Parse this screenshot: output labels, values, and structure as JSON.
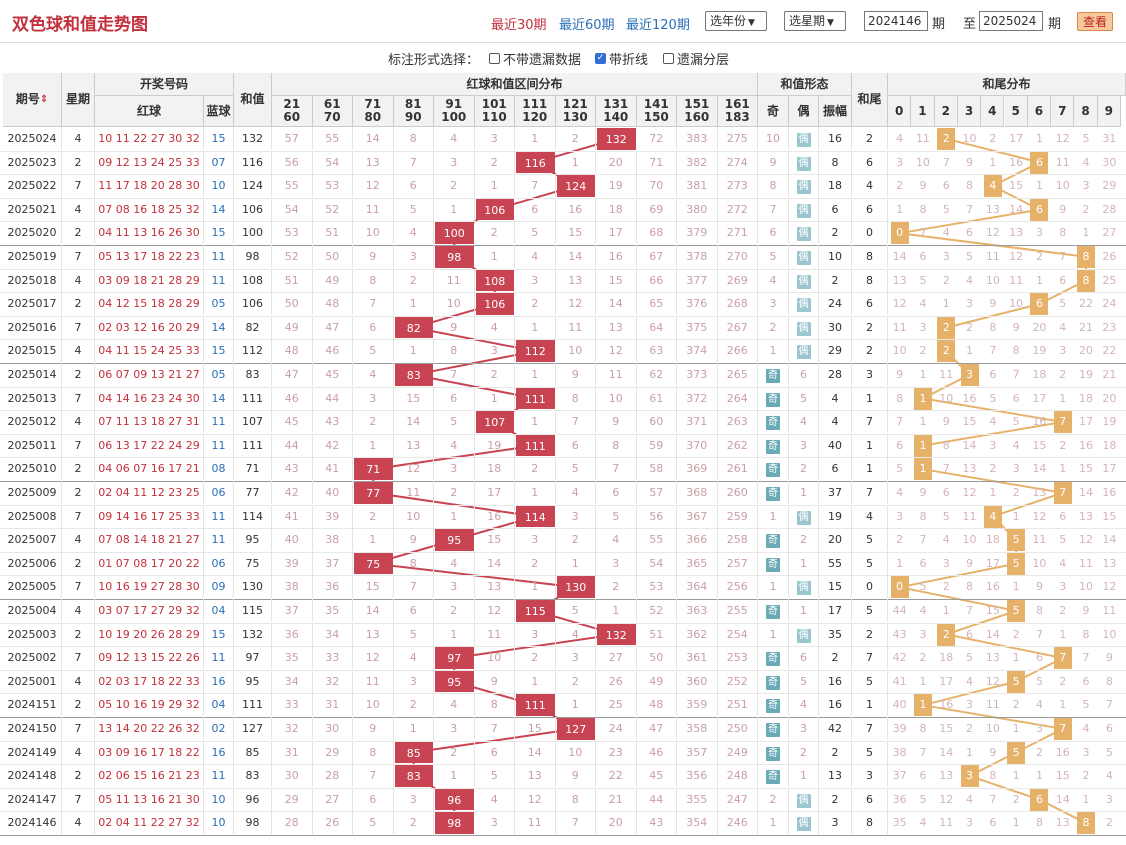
{
  "header": {
    "title": "双色球和值走势图",
    "periods": [
      "最近30期",
      "最近60期",
      "最近120期"
    ],
    "select_year": "选年份",
    "select_issue": "选星期",
    "from": "2024146",
    "to": "2025024",
    "qi": "期",
    "zhi": "至",
    "view": "查看"
  },
  "options": {
    "label": "标注形式选择：",
    "items": [
      {
        "label": "不带遗漏数据",
        "checked": false
      },
      {
        "label": "带折线",
        "checked": true
      },
      {
        "label": "遗漏分层",
        "checked": false
      }
    ]
  },
  "table": {
    "h_issue": "期号",
    "sort_icon": "sort-icon",
    "h_week": "星期",
    "h_draw": "开奖号码",
    "h_red": "红球",
    "h_blue": "蓝球",
    "h_sum": "和值",
    "h_dist": "红球和值区间分布",
    "h_form": "和值形态",
    "h_odd": "奇",
    "h_even": "偶",
    "h_amp": "振幅",
    "h_tail": "和尾",
    "h_tail_dist": "和尾分布",
    "tail_digits": [
      "0",
      "1",
      "2",
      "3",
      "4",
      "5",
      "6",
      "7",
      "8",
      "9"
    ],
    "ranges": [
      [
        "21",
        "60"
      ],
      [
        "61",
        "70"
      ],
      [
        "71",
        "80"
      ],
      [
        "81",
        "90"
      ],
      [
        "91",
        "100"
      ],
      [
        "101",
        "110"
      ],
      [
        "111",
        "120"
      ],
      [
        "121",
        "130"
      ],
      [
        "131",
        "140"
      ],
      [
        "141",
        "150"
      ],
      [
        "151",
        "160"
      ],
      [
        "161",
        "183"
      ]
    ]
  },
  "chart_data": {
    "type": "table",
    "title": "双色球和值走势图",
    "rows": [
      {
        "issue": "2025024",
        "week": "4",
        "red": "10 11 22 27 30 32",
        "blue": "15",
        "sum": 132,
        "ranges": [
          57,
          55,
          14,
          8,
          4,
          3,
          1,
          2,
          null,
          72,
          383,
          275
        ],
        "odd": "10",
        "even": "偶",
        "amp": 16,
        "tail": 2,
        "tails": [
          4,
          11,
          null,
          10,
          2,
          17,
          1,
          12,
          5,
          31
        ]
      },
      {
        "issue": "2025023",
        "week": "2",
        "red": "09 12 13 24 25 33",
        "blue": "07",
        "sum": 116,
        "ranges": [
          56,
          54,
          13,
          7,
          3,
          2,
          null,
          1,
          20,
          71,
          382,
          274
        ],
        "odd": "9",
        "even": "偶",
        "amp": 8,
        "tail": 6,
        "tails": [
          3,
          10,
          7,
          9,
          1,
          16,
          null,
          11,
          4,
          30
        ]
      },
      {
        "issue": "2025022",
        "week": "7",
        "red": "11 17 18 20 28 30",
        "blue": "10",
        "sum": 124,
        "ranges": [
          55,
          53,
          12,
          6,
          2,
          1,
          7,
          null,
          19,
          70,
          381,
          273
        ],
        "odd": "8",
        "even": "偶",
        "amp": 18,
        "tail": 4,
        "tails": [
          2,
          9,
          6,
          8,
          null,
          15,
          1,
          10,
          3,
          29
        ]
      },
      {
        "issue": "2025021",
        "week": "4",
        "red": "07 08 16 18 25 32",
        "blue": "14",
        "sum": 106,
        "ranges": [
          54,
          52,
          11,
          5,
          1,
          null,
          6,
          16,
          18,
          69,
          380,
          272
        ],
        "odd": "7",
        "even": "偶",
        "amp": 6,
        "tail": 6,
        "tails": [
          1,
          8,
          5,
          7,
          13,
          14,
          null,
          9,
          2,
          28
        ]
      },
      {
        "issue": "2025020",
        "week": "2",
        "red": "04 11 13 16 26 30",
        "blue": "15",
        "sum": 100,
        "ranges": [
          53,
          51,
          10,
          4,
          null,
          2,
          5,
          15,
          17,
          68,
          379,
          271
        ],
        "odd": "6",
        "even": "偶",
        "amp": 2,
        "tail": 0,
        "tails": [
          null,
          7,
          4,
          6,
          12,
          13,
          3,
          8,
          1,
          27
        ]
      },
      {
        "issue": "2025019",
        "week": "7",
        "red": "05 13 17 18 22 23",
        "blue": "11",
        "sum": 98,
        "ranges": [
          52,
          50,
          9,
          3,
          null,
          1,
          4,
          14,
          16,
          67,
          378,
          270
        ],
        "odd": "5",
        "even": "偶",
        "amp": 10,
        "tail": 8,
        "tails": [
          14,
          6,
          3,
          5,
          11,
          12,
          2,
          7,
          null,
          26
        ]
      },
      {
        "issue": "2025018",
        "week": "4",
        "red": "03 09 18 21 28 29",
        "blue": "11",
        "sum": 108,
        "ranges": [
          51,
          49,
          8,
          2,
          11,
          null,
          3,
          13,
          15,
          66,
          377,
          269
        ],
        "odd": "4",
        "even": "偶",
        "amp": 2,
        "tail": 8,
        "tails": [
          13,
          5,
          2,
          4,
          10,
          11,
          1,
          6,
          null,
          25
        ]
      },
      {
        "issue": "2025017",
        "week": "2",
        "red": "04 12 15 18 28 29",
        "blue": "05",
        "sum": 106,
        "ranges": [
          50,
          48,
          7,
          1,
          10,
          null,
          2,
          12,
          14,
          65,
          376,
          268
        ],
        "odd": "3",
        "even": "偶",
        "amp": 24,
        "tail": 6,
        "tails": [
          12,
          4,
          1,
          3,
          9,
          10,
          null,
          5,
          22,
          24
        ]
      },
      {
        "issue": "2025016",
        "week": "7",
        "red": "02 03 12 16 20 29",
        "blue": "14",
        "sum": 82,
        "ranges": [
          49,
          47,
          6,
          null,
          9,
          4,
          1,
          11,
          13,
          64,
          375,
          267
        ],
        "odd": "2",
        "even": "偶",
        "amp": 30,
        "tail": 2,
        "tails": [
          11,
          3,
          null,
          2,
          8,
          9,
          20,
          4,
          21,
          23
        ]
      },
      {
        "issue": "2025015",
        "week": "4",
        "red": "04 11 15 24 25 33",
        "blue": "15",
        "sum": 112,
        "ranges": [
          48,
          46,
          5,
          1,
          8,
          3,
          null,
          10,
          12,
          63,
          374,
          266
        ],
        "odd": "1",
        "even": "偶",
        "amp": 29,
        "tail": 2,
        "tails": [
          10,
          2,
          null,
          1,
          7,
          8,
          19,
          3,
          20,
          22
        ]
      },
      {
        "issue": "2025014",
        "week": "2",
        "red": "06 07 09 13 21 27",
        "blue": "05",
        "sum": 83,
        "ranges": [
          47,
          45,
          4,
          null,
          7,
          2,
          1,
          9,
          11,
          62,
          373,
          265
        ],
        "odd": "奇",
        "even": "6",
        "amp": 28,
        "tail": 3,
        "tails": [
          9,
          1,
          11,
          null,
          6,
          7,
          18,
          2,
          19,
          21
        ]
      },
      {
        "issue": "2025013",
        "week": "7",
        "red": "04 14 16 23 24 30",
        "blue": "14",
        "sum": 111,
        "ranges": [
          46,
          44,
          3,
          15,
          6,
          1,
          null,
          8,
          10,
          61,
          372,
          264
        ],
        "odd": "奇",
        "even": "5",
        "amp": 4,
        "tail": 1,
        "tails": [
          8,
          null,
          10,
          16,
          5,
          6,
          17,
          1,
          18,
          20
        ]
      },
      {
        "issue": "2025012",
        "week": "4",
        "red": "07 11 13 18 27 31",
        "blue": "11",
        "sum": 107,
        "ranges": [
          45,
          43,
          2,
          14,
          5,
          null,
          1,
          7,
          9,
          60,
          371,
          263
        ],
        "odd": "奇",
        "even": "4",
        "amp": 4,
        "tail": 7,
        "tails": [
          7,
          1,
          9,
          15,
          4,
          5,
          16,
          null,
          17,
          19
        ]
      },
      {
        "issue": "2025011",
        "week": "7",
        "red": "06 13 17 22 24 29",
        "blue": "11",
        "sum": 111,
        "ranges": [
          44,
          42,
          1,
          13,
          4,
          19,
          null,
          6,
          8,
          59,
          370,
          262
        ],
        "odd": "奇",
        "even": "3",
        "amp": 40,
        "tail": 1,
        "tails": [
          6,
          null,
          8,
          14,
          3,
          4,
          15,
          2,
          16,
          18
        ]
      },
      {
        "issue": "2025010",
        "week": "2",
        "red": "04 06 07 16 17 21",
        "blue": "08",
        "sum": 71,
        "ranges": [
          43,
          41,
          null,
          12,
          3,
          18,
          2,
          5,
          7,
          58,
          369,
          261
        ],
        "odd": "奇",
        "even": "2",
        "amp": 6,
        "tail": 1,
        "tails": [
          5,
          null,
          7,
          13,
          2,
          3,
          14,
          1,
          15,
          17
        ]
      },
      {
        "issue": "2025009",
        "week": "2",
        "red": "02 04 11 12 23 25",
        "blue": "06",
        "sum": 77,
        "ranges": [
          42,
          40,
          null,
          11,
          2,
          17,
          1,
          4,
          6,
          57,
          368,
          260
        ],
        "odd": "奇",
        "even": "1",
        "amp": 37,
        "tail": 7,
        "tails": [
          4,
          9,
          6,
          12,
          1,
          2,
          13,
          null,
          14,
          16
        ]
      },
      {
        "issue": "2025008",
        "week": "7",
        "red": "09 14 16 17 25 33",
        "blue": "11",
        "sum": 114,
        "ranges": [
          41,
          39,
          2,
          10,
          1,
          16,
          null,
          3,
          5,
          56,
          367,
          259
        ],
        "odd": "1",
        "even": "偶",
        "amp": 19,
        "tail": 4,
        "tails": [
          3,
          8,
          5,
          11,
          null,
          1,
          12,
          6,
          13,
          15
        ]
      },
      {
        "issue": "2025007",
        "week": "4",
        "red": "07 08 14 18 21 27",
        "blue": "11",
        "sum": 95,
        "ranges": [
          40,
          38,
          1,
          9,
          null,
          15,
          3,
          2,
          4,
          55,
          366,
          258
        ],
        "odd": "奇",
        "even": "2",
        "amp": 20,
        "tail": 5,
        "tails": [
          2,
          7,
          4,
          10,
          18,
          null,
          11,
          5,
          12,
          14
        ]
      },
      {
        "issue": "2025006",
        "week": "2",
        "red": "01 07 08 17 20 22",
        "blue": "06",
        "sum": 75,
        "ranges": [
          39,
          37,
          null,
          8,
          4,
          14,
          2,
          1,
          3,
          54,
          365,
          257
        ],
        "odd": "奇",
        "even": "1",
        "amp": 55,
        "tail": 5,
        "tails": [
          1,
          6,
          3,
          9,
          17,
          null,
          10,
          4,
          11,
          13
        ]
      },
      {
        "issue": "2025005",
        "week": "7",
        "red": "10 16 19 27 28 30",
        "blue": "09",
        "sum": 130,
        "ranges": [
          38,
          36,
          15,
          7,
          3,
          13,
          1,
          null,
          2,
          53,
          364,
          256
        ],
        "odd": "1",
        "even": "偶",
        "amp": 15,
        "tail": 0,
        "tails": [
          null,
          5,
          2,
          8,
          16,
          1,
          9,
          3,
          10,
          12
        ]
      },
      {
        "issue": "2025004",
        "week": "4",
        "red": "03 07 17 27 29 32",
        "blue": "04",
        "sum": 115,
        "ranges": [
          37,
          35,
          14,
          6,
          2,
          12,
          null,
          5,
          1,
          52,
          363,
          255
        ],
        "odd": "奇",
        "even": "1",
        "amp": 17,
        "tail": 5,
        "tails": [
          44,
          4,
          1,
          7,
          15,
          null,
          8,
          2,
          9,
          11
        ]
      },
      {
        "issue": "2025003",
        "week": "2",
        "red": "10 19 20 26 28 29",
        "blue": "15",
        "sum": 132,
        "ranges": [
          36,
          34,
          13,
          5,
          1,
          11,
          3,
          4,
          null,
          51,
          362,
          254
        ],
        "odd": "1",
        "even": "偶",
        "amp": 35,
        "tail": 2,
        "tails": [
          43,
          3,
          null,
          6,
          14,
          2,
          7,
          1,
          8,
          10
        ]
      },
      {
        "issue": "2025002",
        "week": "7",
        "red": "09 12 13 15 22 26",
        "blue": "11",
        "sum": 97,
        "ranges": [
          35,
          33,
          12,
          4,
          null,
          10,
          2,
          3,
          27,
          50,
          361,
          253
        ],
        "odd": "奇",
        "even": "6",
        "amp": 2,
        "tail": 7,
        "tails": [
          42,
          2,
          18,
          5,
          13,
          1,
          6,
          null,
          7,
          9
        ]
      },
      {
        "issue": "2025001",
        "week": "4",
        "red": "02 03 17 18 22 33",
        "blue": "16",
        "sum": 95,
        "ranges": [
          34,
          32,
          11,
          3,
          null,
          9,
          1,
          2,
          26,
          49,
          360,
          252
        ],
        "odd": "奇",
        "even": "5",
        "amp": 16,
        "tail": 5,
        "tails": [
          41,
          1,
          17,
          4,
          12,
          null,
          5,
          2,
          6,
          8
        ]
      },
      {
        "issue": "2024151",
        "week": "2",
        "red": "05 10 16 19 29 32",
        "blue": "04",
        "sum": 111,
        "ranges": [
          33,
          31,
          10,
          2,
          4,
          8,
          null,
          1,
          25,
          48,
          359,
          251
        ],
        "odd": "奇",
        "even": "4",
        "amp": 16,
        "tail": 1,
        "tails": [
          40,
          null,
          16,
          3,
          11,
          2,
          4,
          1,
          5,
          7
        ]
      },
      {
        "issue": "2024150",
        "week": "7",
        "red": "13 14 20 22 26 32",
        "blue": "02",
        "sum": 127,
        "ranges": [
          32,
          30,
          9,
          1,
          3,
          7,
          15,
          null,
          24,
          47,
          358,
          250
        ],
        "odd": "奇",
        "even": "3",
        "amp": 42,
        "tail": 7,
        "tails": [
          39,
          8,
          15,
          2,
          10,
          1,
          3,
          null,
          4,
          6
        ]
      },
      {
        "issue": "2024149",
        "week": "4",
        "red": "03 09 16 17 18 22",
        "blue": "16",
        "sum": 85,
        "ranges": [
          31,
          29,
          8,
          null,
          2,
          6,
          14,
          10,
          23,
          46,
          357,
          249
        ],
        "odd": "奇",
        "even": "2",
        "amp": 2,
        "tail": 5,
        "tails": [
          38,
          7,
          14,
          1,
          9,
          null,
          2,
          16,
          3,
          5
        ]
      },
      {
        "issue": "2024148",
        "week": "2",
        "red": "02 06 15 16 21 23",
        "blue": "11",
        "sum": 83,
        "ranges": [
          30,
          28,
          7,
          null,
          1,
          5,
          13,
          9,
          22,
          45,
          356,
          248
        ],
        "odd": "奇",
        "even": "1",
        "amp": 13,
        "tail": 3,
        "tails": [
          37,
          6,
          13,
          null,
          8,
          1,
          1,
          15,
          2,
          4
        ]
      },
      {
        "issue": "2024147",
        "week": "7",
        "red": "05 11 13 16 21 30",
        "blue": "10",
        "sum": 96,
        "ranges": [
          29,
          27,
          6,
          3,
          null,
          4,
          12,
          8,
          21,
          44,
          355,
          247
        ],
        "odd": "2",
        "even": "偶",
        "amp": 2,
        "tail": 6,
        "tails": [
          36,
          5,
          12,
          4,
          7,
          2,
          null,
          14,
          1,
          3
        ]
      },
      {
        "issue": "2024146",
        "week": "4",
        "red": "02 04 11 22 27 32",
        "blue": "10",
        "sum": 98,
        "ranges": [
          28,
          26,
          5,
          2,
          null,
          3,
          11,
          7,
          20,
          43,
          354,
          246
        ],
        "odd": "1",
        "even": "偶",
        "amp": 3,
        "tail": 8,
        "tails": [
          35,
          4,
          11,
          3,
          6,
          1,
          8,
          13,
          null,
          2
        ]
      }
    ]
  }
}
